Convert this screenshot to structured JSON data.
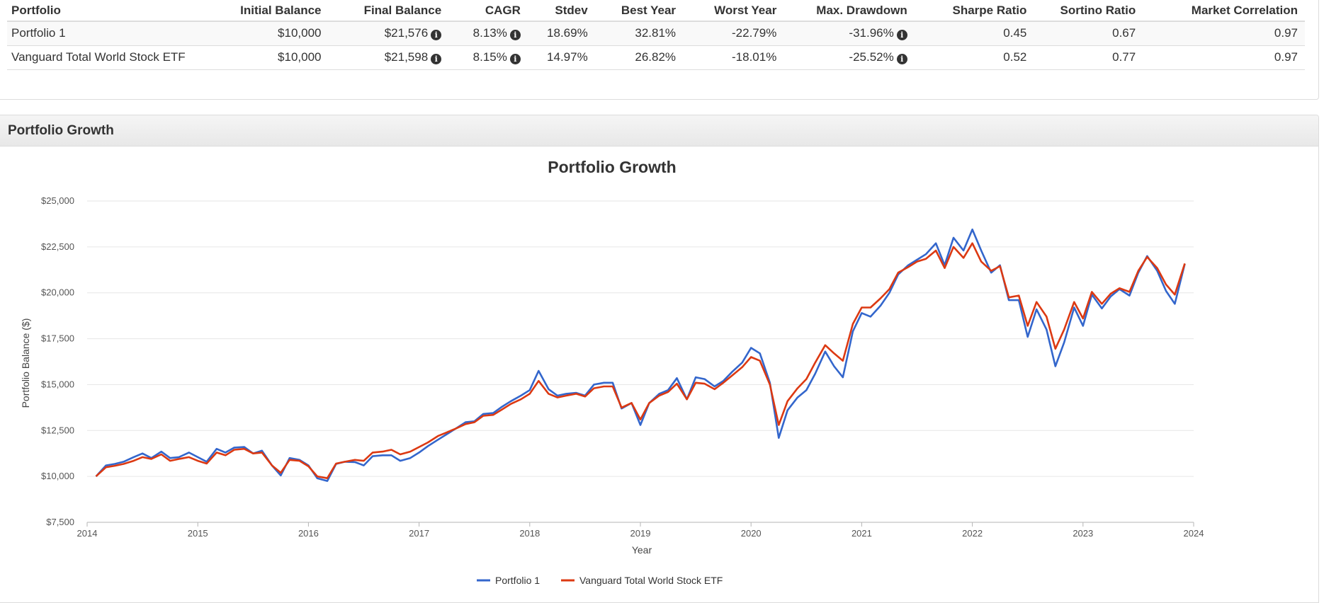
{
  "metrics_table": {
    "columns": [
      "Portfolio",
      "Initial Balance",
      "Final Balance",
      "CAGR",
      "Stdev",
      "Best Year",
      "Worst Year",
      "Max. Drawdown",
      "Sharpe Ratio",
      "Sortino Ratio",
      "Market Correlation"
    ],
    "rows": [
      {
        "name": "Portfolio 1",
        "initial_balance": "$10,000",
        "final_balance": "$21,576",
        "cagr": "8.13%",
        "stdev": "18.69%",
        "best_year": "32.81%",
        "worst_year": "-22.79%",
        "max_drawdown": "-31.96%",
        "sharpe": "0.45",
        "sortino": "0.67",
        "market_correlation": "0.97"
      },
      {
        "name": "Vanguard Total World Stock ETF",
        "initial_balance": "$10,000",
        "final_balance": "$21,598",
        "cagr": "8.15%",
        "stdev": "14.97%",
        "best_year": "26.82%",
        "worst_year": "-18.01%",
        "max_drawdown": "-25.52%",
        "sharpe": "0.52",
        "sortino": "0.77",
        "market_correlation": "0.97"
      }
    ],
    "info_icon": "info-circle-icon"
  },
  "growth_panel": {
    "header": "Portfolio Growth"
  },
  "chart_data": {
    "type": "line",
    "title": "Portfolio Growth",
    "xlabel": "Year",
    "ylabel": "Portfolio Balance ($)",
    "xlim": [
      2014,
      2024
    ],
    "ylim": [
      7500,
      25000
    ],
    "x_ticks": [
      2014,
      2015,
      2016,
      2017,
      2018,
      2019,
      2020,
      2021,
      2022,
      2023,
      2024
    ],
    "y_ticks": [
      7500,
      10000,
      12500,
      15000,
      17500,
      20000,
      22500,
      25000
    ],
    "y_tick_labels": [
      "$7,500",
      "$10,000",
      "$12,500",
      "$15,000",
      "$17,500",
      "$20,000",
      "$22,500",
      "$25,000"
    ],
    "grid": "horizontal",
    "legend_position": "bottom-center",
    "series": [
      {
        "name": "Portfolio 1",
        "color": "#3366cc",
        "points": [
          [
            2014.08,
            10000
          ],
          [
            2014.17,
            10600
          ],
          [
            2014.25,
            10680
          ],
          [
            2014.33,
            10800
          ],
          [
            2014.42,
            11050
          ],
          [
            2014.5,
            11250
          ],
          [
            2014.58,
            11000
          ],
          [
            2014.67,
            11350
          ],
          [
            2014.75,
            11000
          ],
          [
            2014.83,
            11050
          ],
          [
            2014.92,
            11300
          ],
          [
            2015.0,
            11050
          ],
          [
            2015.08,
            10800
          ],
          [
            2015.17,
            11500
          ],
          [
            2015.25,
            11300
          ],
          [
            2015.33,
            11570
          ],
          [
            2015.42,
            11600
          ],
          [
            2015.5,
            11250
          ],
          [
            2015.58,
            11400
          ],
          [
            2015.67,
            10600
          ],
          [
            2015.75,
            10050
          ],
          [
            2015.83,
            11000
          ],
          [
            2015.92,
            10900
          ],
          [
            2016.0,
            10600
          ],
          [
            2016.08,
            9900
          ],
          [
            2016.17,
            9750
          ],
          [
            2016.25,
            10680
          ],
          [
            2016.33,
            10800
          ],
          [
            2016.42,
            10780
          ],
          [
            2016.5,
            10600
          ],
          [
            2016.58,
            11100
          ],
          [
            2016.67,
            11150
          ],
          [
            2016.75,
            11150
          ],
          [
            2016.83,
            10850
          ],
          [
            2016.92,
            11000
          ],
          [
            2017.0,
            11300
          ],
          [
            2017.08,
            11650
          ],
          [
            2017.17,
            12000
          ],
          [
            2017.25,
            12300
          ],
          [
            2017.33,
            12600
          ],
          [
            2017.42,
            12950
          ],
          [
            2017.5,
            13000
          ],
          [
            2017.58,
            13400
          ],
          [
            2017.67,
            13450
          ],
          [
            2017.75,
            13800
          ],
          [
            2017.83,
            14100
          ],
          [
            2017.92,
            14400
          ],
          [
            2018.0,
            14700
          ],
          [
            2018.08,
            15750
          ],
          [
            2018.17,
            14750
          ],
          [
            2018.25,
            14400
          ],
          [
            2018.33,
            14500
          ],
          [
            2018.42,
            14550
          ],
          [
            2018.5,
            14400
          ],
          [
            2018.58,
            15000
          ],
          [
            2018.67,
            15100
          ],
          [
            2018.75,
            15100
          ],
          [
            2018.83,
            13700
          ],
          [
            2018.92,
            14000
          ],
          [
            2019.0,
            12800
          ],
          [
            2019.08,
            14000
          ],
          [
            2019.17,
            14500
          ],
          [
            2019.25,
            14700
          ],
          [
            2019.33,
            15350
          ],
          [
            2019.42,
            14200
          ],
          [
            2019.5,
            15400
          ],
          [
            2019.58,
            15300
          ],
          [
            2019.67,
            14900
          ],
          [
            2019.75,
            15200
          ],
          [
            2019.83,
            15700
          ],
          [
            2019.92,
            16200
          ],
          [
            2020.0,
            17000
          ],
          [
            2020.08,
            16700
          ],
          [
            2020.17,
            15100
          ],
          [
            2020.25,
            12100
          ],
          [
            2020.33,
            13600
          ],
          [
            2020.42,
            14300
          ],
          [
            2020.5,
            14700
          ],
          [
            2020.58,
            15600
          ],
          [
            2020.67,
            16800
          ],
          [
            2020.75,
            16000
          ],
          [
            2020.83,
            15400
          ],
          [
            2020.92,
            17900
          ],
          [
            2021.0,
            18900
          ],
          [
            2021.08,
            18700
          ],
          [
            2021.17,
            19300
          ],
          [
            2021.25,
            20000
          ],
          [
            2021.33,
            21000
          ],
          [
            2021.42,
            21500
          ],
          [
            2021.5,
            21800
          ],
          [
            2021.58,
            22100
          ],
          [
            2021.67,
            22700
          ],
          [
            2021.75,
            21500
          ],
          [
            2021.83,
            23000
          ],
          [
            2021.92,
            22300
          ],
          [
            2022.0,
            23450
          ],
          [
            2022.08,
            22300
          ],
          [
            2022.17,
            21100
          ],
          [
            2022.25,
            21500
          ],
          [
            2022.33,
            19600
          ],
          [
            2022.42,
            19600
          ],
          [
            2022.5,
            17600
          ],
          [
            2022.58,
            19100
          ],
          [
            2022.67,
            18000
          ],
          [
            2022.75,
            16000
          ],
          [
            2022.83,
            17300
          ],
          [
            2022.92,
            19200
          ],
          [
            2023.0,
            18200
          ],
          [
            2023.08,
            19900
          ],
          [
            2023.17,
            19150
          ],
          [
            2023.25,
            19800
          ],
          [
            2023.33,
            20200
          ],
          [
            2023.42,
            19850
          ],
          [
            2023.5,
            21100
          ],
          [
            2023.58,
            22000
          ],
          [
            2023.67,
            21200
          ],
          [
            2023.75,
            20100
          ],
          [
            2023.83,
            19400
          ],
          [
            2023.92,
            21576
          ]
        ]
      },
      {
        "name": "Vanguard Total World Stock ETF",
        "color": "#dc3912",
        "points": [
          [
            2014.08,
            10000
          ],
          [
            2014.17,
            10500
          ],
          [
            2014.25,
            10580
          ],
          [
            2014.33,
            10680
          ],
          [
            2014.42,
            10850
          ],
          [
            2014.5,
            11050
          ],
          [
            2014.58,
            10950
          ],
          [
            2014.67,
            11200
          ],
          [
            2014.75,
            10850
          ],
          [
            2014.83,
            10950
          ],
          [
            2014.92,
            11050
          ],
          [
            2015.0,
            10850
          ],
          [
            2015.08,
            10700
          ],
          [
            2015.17,
            11300
          ],
          [
            2015.25,
            11150
          ],
          [
            2015.33,
            11450
          ],
          [
            2015.42,
            11500
          ],
          [
            2015.5,
            11250
          ],
          [
            2015.58,
            11300
          ],
          [
            2015.67,
            10600
          ],
          [
            2015.75,
            10200
          ],
          [
            2015.83,
            10900
          ],
          [
            2015.92,
            10850
          ],
          [
            2016.0,
            10550
          ],
          [
            2016.08,
            10000
          ],
          [
            2016.17,
            9900
          ],
          [
            2016.25,
            10700
          ],
          [
            2016.33,
            10800
          ],
          [
            2016.42,
            10900
          ],
          [
            2016.5,
            10850
          ],
          [
            2016.58,
            11300
          ],
          [
            2016.67,
            11350
          ],
          [
            2016.75,
            11450
          ],
          [
            2016.83,
            11200
          ],
          [
            2016.92,
            11350
          ],
          [
            2017.0,
            11600
          ],
          [
            2017.08,
            11850
          ],
          [
            2017.17,
            12200
          ],
          [
            2017.25,
            12400
          ],
          [
            2017.33,
            12600
          ],
          [
            2017.42,
            12850
          ],
          [
            2017.5,
            12950
          ],
          [
            2017.58,
            13300
          ],
          [
            2017.67,
            13350
          ],
          [
            2017.75,
            13650
          ],
          [
            2017.83,
            13950
          ],
          [
            2017.92,
            14200
          ],
          [
            2018.0,
            14500
          ],
          [
            2018.08,
            15200
          ],
          [
            2018.17,
            14500
          ],
          [
            2018.25,
            14300
          ],
          [
            2018.33,
            14400
          ],
          [
            2018.42,
            14500
          ],
          [
            2018.5,
            14350
          ],
          [
            2018.58,
            14800
          ],
          [
            2018.67,
            14900
          ],
          [
            2018.75,
            14900
          ],
          [
            2018.83,
            13750
          ],
          [
            2018.92,
            14000
          ],
          [
            2019.0,
            13100
          ],
          [
            2019.08,
            14000
          ],
          [
            2019.17,
            14400
          ],
          [
            2019.25,
            14600
          ],
          [
            2019.33,
            15050
          ],
          [
            2019.42,
            14200
          ],
          [
            2019.5,
            15100
          ],
          [
            2019.58,
            15050
          ],
          [
            2019.67,
            14750
          ],
          [
            2019.75,
            15100
          ],
          [
            2019.83,
            15500
          ],
          [
            2019.92,
            15950
          ],
          [
            2020.0,
            16500
          ],
          [
            2020.08,
            16300
          ],
          [
            2020.17,
            15000
          ],
          [
            2020.25,
            12800
          ],
          [
            2020.33,
            14100
          ],
          [
            2020.42,
            14800
          ],
          [
            2020.5,
            15300
          ],
          [
            2020.58,
            16200
          ],
          [
            2020.67,
            17150
          ],
          [
            2020.75,
            16700
          ],
          [
            2020.83,
            16300
          ],
          [
            2020.92,
            18300
          ],
          [
            2021.0,
            19200
          ],
          [
            2021.08,
            19200
          ],
          [
            2021.17,
            19700
          ],
          [
            2021.25,
            20200
          ],
          [
            2021.33,
            21100
          ],
          [
            2021.42,
            21400
          ],
          [
            2021.5,
            21700
          ],
          [
            2021.58,
            21850
          ],
          [
            2021.67,
            22300
          ],
          [
            2021.75,
            21350
          ],
          [
            2021.83,
            22500
          ],
          [
            2021.92,
            21900
          ],
          [
            2022.0,
            22700
          ],
          [
            2022.08,
            21700
          ],
          [
            2022.17,
            21200
          ],
          [
            2022.25,
            21450
          ],
          [
            2022.33,
            19750
          ],
          [
            2022.42,
            19850
          ],
          [
            2022.5,
            18200
          ],
          [
            2022.58,
            19500
          ],
          [
            2022.67,
            18700
          ],
          [
            2022.75,
            16950
          ],
          [
            2022.83,
            18000
          ],
          [
            2022.92,
            19500
          ],
          [
            2023.0,
            18600
          ],
          [
            2023.08,
            20050
          ],
          [
            2023.17,
            19400
          ],
          [
            2023.25,
            19950
          ],
          [
            2023.33,
            20250
          ],
          [
            2023.42,
            20050
          ],
          [
            2023.5,
            21200
          ],
          [
            2023.58,
            21950
          ],
          [
            2023.67,
            21350
          ],
          [
            2023.75,
            20450
          ],
          [
            2023.83,
            19900
          ],
          [
            2023.92,
            21598
          ]
        ]
      }
    ]
  }
}
